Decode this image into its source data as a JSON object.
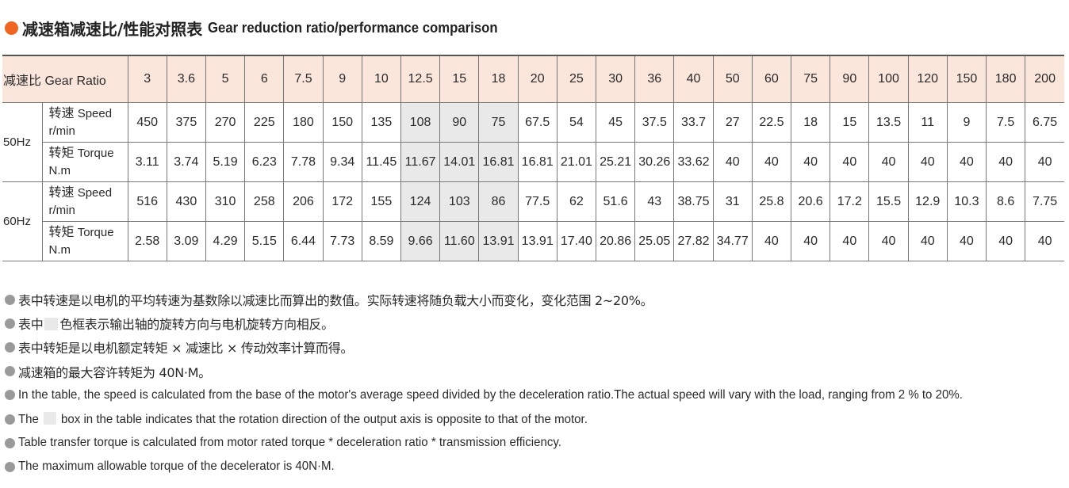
{
  "title": {
    "cn": "减速箱减速比/性能对照表",
    "en": "Gear reduction ratio/performance comparison"
  },
  "colors": {
    "title_dot": "#f06522",
    "header_bg": "#fbe6dc",
    "shade": "#e9e9e9",
    "bullet": "#9a9a9a"
  },
  "table": {
    "ratio_label": "减速比 Gear Ratio",
    "ratios": [
      "3",
      "3.6",
      "5",
      "6",
      "7.5",
      "9",
      "10",
      "12.5",
      "15",
      "18",
      "20",
      "25",
      "30",
      "36",
      "40",
      "50",
      "60",
      "75",
      "90",
      "100",
      "120",
      "150",
      "180",
      "200"
    ],
    "shaded_columns": [
      "12.5",
      "15",
      "18"
    ],
    "groups": [
      {
        "freq": "50Hz",
        "rows": [
          {
            "param_cn": "转速",
            "param_en": "Speed",
            "unit": "r/min",
            "values": [
              "450",
              "375",
              "270",
              "225",
              "180",
              "150",
              "135",
              "108",
              "90",
              "75",
              "67.5",
              "54",
              "45",
              "37.5",
              "33.7",
              "27",
              "22.5",
              "18",
              "15",
              "13.5",
              "11",
              "9",
              "7.5",
              "6.75"
            ]
          },
          {
            "param_cn": "转矩",
            "param_en": "Torque",
            "unit": "N.m",
            "values": [
              "3.11",
              "3.74",
              "5.19",
              "6.23",
              "7.78",
              "9.34",
              "11.45",
              "11.67",
              "14.01",
              "16.81",
              "16.81",
              "21.01",
              "25.21",
              "30.26",
              "33.62",
              "40",
              "40",
              "40",
              "40",
              "40",
              "40",
              "40",
              "40",
              "40"
            ]
          }
        ]
      },
      {
        "freq": "60Hz",
        "rows": [
          {
            "param_cn": "转速",
            "param_en": "Speed",
            "unit": "r/min",
            "values": [
              "516",
              "430",
              "310",
              "258",
              "206",
              "172",
              "155",
              "124",
              "103",
              "86",
              "77.5",
              "62",
              "51.6",
              "43",
              "38.75",
              "31",
              "25.8",
              "20.6",
              "17.2",
              "15.5",
              "12.9",
              "10.3",
              "8.6",
              "7.75"
            ]
          },
          {
            "param_cn": "转矩",
            "param_en": "Torque",
            "unit": "N.m",
            "values": [
              "2.58",
              "3.09",
              "4.29",
              "5.15",
              "6.44",
              "7.73",
              "8.59",
              "9.66",
              "11.60",
              "13.91",
              "13.91",
              "17.40",
              "20.86",
              "25.05",
              "27.82",
              "34.77",
              "40",
              "40",
              "40",
              "40",
              "40",
              "40",
              "40",
              "40"
            ]
          }
        ]
      }
    ]
  },
  "notes": {
    "cn1": "表中转速是以电机的平均转速为基数除以减速比而算出的数值。实际转速将随负载大小而变化，变化范围 2~20%。",
    "cn2_before": "表中",
    "cn2_after": "色框表示输出轴的旋转方向与电机旋转方向相反。",
    "cn3": "表中转矩是以电机额定转矩 × 减速比 × 传动效率计算而得。",
    "cn4": "减速箱的最大容许转矩为 40N·M。",
    "en1": "In the table, the speed is calculated from the base of the motor's average speed divided by the deceleration ratio.The actual speed will vary with the load, ranging from 2 % to 20%.",
    "en2_before": "The",
    "en2_after": "box in the table indicates that the rotation direction of the output axis is opposite to that of the motor.",
    "en3": "Table transfer torque is calculated from motor rated torque * deceleration ratio * transmission efficiency.",
    "en4": "The maximum allowable torque of the decelerator is 40N·M."
  }
}
